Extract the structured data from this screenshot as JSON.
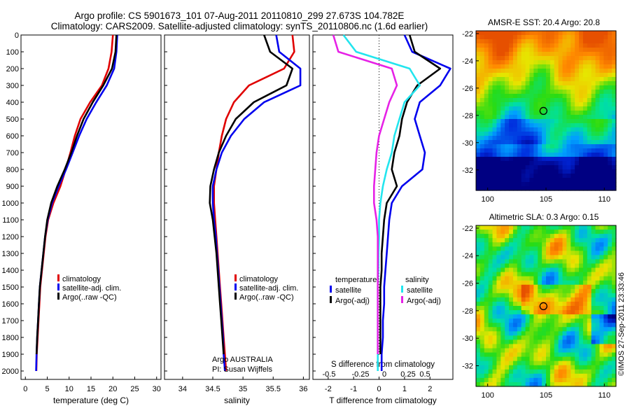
{
  "header": {
    "line1": "Argo profile: CS 5901673_101 07-Aug-2011 20110810_299 27.673S 104.782E",
    "line2": "Climatology: CARS2009. Satellite-adjusted climatology: synTS_20110806.nc (1.6d earlier)"
  },
  "footer": {
    "stamp": "©IMOS 27-Sep-2011 23:33:46"
  },
  "colors": {
    "climatology": "#e00000",
    "satellite": "#0000ee",
    "argo": "#000000",
    "sat_salinity": "#22e5ee",
    "argo_salinity": "#e622e6"
  },
  "chart_data": [
    {
      "type": "line",
      "xlabel": "temperature (deg C)",
      "xlim": [
        -1,
        31
      ],
      "xticks": [
        0,
        5,
        10,
        15,
        20,
        25,
        30
      ],
      "ylim": [
        0,
        2050
      ],
      "yticks": [
        0,
        100,
        200,
        300,
        400,
        500,
        600,
        700,
        800,
        900,
        1000,
        1100,
        1200,
        1300,
        1400,
        1500,
        1600,
        1700,
        1800,
        1900,
        2000
      ],
      "legend": [
        "climatology",
        "satellite-adj. clim.",
        "Argo(..raw -QC)"
      ],
      "legend_colors": [
        "#e00000",
        "#0000ee",
        "#000000"
      ],
      "series": [
        {
          "name": "climatology",
          "color": "#e00000",
          "x": [
            20.0,
            19.7,
            19.0,
            17.5,
            14.8,
            12.6,
            11.3,
            10.3,
            9.2,
            8.0,
            6.4,
            5.2,
            4.6,
            4.2,
            3.8,
            3.4,
            3.2,
            3.0,
            2.8,
            2.6,
            2.5
          ],
          "y": [
            0,
            100,
            200,
            300,
            400,
            500,
            600,
            700,
            800,
            900,
            1000,
            1100,
            1200,
            1300,
            1400,
            1500,
            1600,
            1700,
            1800,
            1900,
            2000
          ]
        },
        {
          "name": "satellite-adj. clim.",
          "color": "#0000ee",
          "x": [
            21.0,
            20.8,
            20.3,
            18.6,
            16.2,
            14.0,
            12.3,
            10.8,
            9.3,
            7.6,
            6.1,
            5.1,
            4.5,
            4.1,
            3.7,
            3.3,
            3.1,
            2.9,
            2.7,
            2.55,
            2.45
          ],
          "y": [
            0,
            100,
            200,
            300,
            400,
            500,
            600,
            700,
            800,
            900,
            1000,
            1100,
            1200,
            1300,
            1400,
            1500,
            1600,
            1700,
            1800,
            1900,
            2000
          ]
        },
        {
          "name": "Argo(..raw -QC)",
          "color": "#000000",
          "x": [
            20.8,
            20.6,
            19.8,
            17.8,
            15.4,
            13.3,
            11.8,
            10.5,
            9.0,
            7.3,
            5.9,
            5.0,
            4.5,
            4.1,
            3.7,
            3.3,
            3.1,
            2.9,
            2.7,
            2.55
          ],
          "y": [
            0,
            100,
            200,
            300,
            400,
            500,
            600,
            700,
            800,
            900,
            1000,
            1100,
            1200,
            1300,
            1400,
            1500,
            1600,
            1700,
            1800,
            1900
          ]
        }
      ]
    },
    {
      "type": "line",
      "xlabel": "salinity",
      "xlim": [
        33.7,
        36.1
      ],
      "xticks": [
        34,
        34.5,
        35,
        35.5,
        36
      ],
      "ylim": [
        0,
        2050
      ],
      "legend": [
        "climatology",
        "satellite-adj. clim.",
        "Argo(..raw -QC)"
      ],
      "legend_colors": [
        "#e00000",
        "#0000ee",
        "#000000"
      ],
      "annotations": [
        "Argo AUSTRALIA",
        "PI: Susan Wijffels"
      ],
      "series": [
        {
          "name": "climatology",
          "color": "#e00000",
          "x": [
            35.82,
            35.85,
            35.68,
            35.1,
            34.85,
            34.72,
            34.65,
            34.6,
            34.56,
            34.52,
            34.52,
            34.54,
            34.56,
            34.58,
            34.6,
            34.62,
            34.64,
            34.66,
            34.68,
            34.7,
            34.72
          ],
          "y": [
            0,
            100,
            200,
            300,
            400,
            500,
            600,
            700,
            800,
            900,
            1000,
            1100,
            1200,
            1300,
            1400,
            1500,
            1600,
            1700,
            1800,
            1900,
            2000
          ]
        },
        {
          "name": "satellite-adj. clim.",
          "color": "#0000ee",
          "x": [
            35.55,
            35.6,
            35.95,
            35.95,
            35.35,
            35.02,
            34.8,
            34.65,
            34.56,
            34.5,
            34.5,
            34.52,
            34.55,
            34.57,
            34.59,
            34.61,
            34.63,
            34.65,
            34.67,
            34.68,
            34.7
          ],
          "y": [
            0,
            100,
            200,
            300,
            400,
            500,
            600,
            700,
            800,
            900,
            1000,
            1100,
            1200,
            1300,
            1400,
            1500,
            1600,
            1700,
            1800,
            1900,
            2000
          ]
        },
        {
          "name": "Argo(..raw -QC)",
          "color": "#000000",
          "x": [
            35.35,
            35.45,
            35.82,
            35.72,
            35.18,
            34.88,
            34.72,
            34.6,
            34.52,
            34.46,
            34.45,
            34.5,
            34.53,
            34.56,
            34.58,
            34.6,
            34.62,
            34.64,
            34.66,
            34.68
          ],
          "y": [
            0,
            100,
            200,
            300,
            400,
            500,
            600,
            700,
            800,
            900,
            1000,
            1100,
            1200,
            1300,
            1400,
            1500,
            1600,
            1700,
            1800,
            1900
          ]
        }
      ]
    },
    {
      "type": "line",
      "xlabel": "T difference from climatology",
      "xlabel_top": "S difference from climatology",
      "xlim": [
        -2.6,
        2.9
      ],
      "xticks": [
        -2,
        -1,
        0,
        1,
        2
      ],
      "xticks_top": [
        -0.5,
        -0.25,
        0,
        0.25,
        0.5
      ],
      "ylim": [
        0,
        2050
      ],
      "legend_headers": [
        "temperature",
        "salinity"
      ],
      "legend": [
        "satellite",
        "Argo(-adj)",
        "satellite",
        "Argo(-adj)"
      ],
      "legend_colors": [
        "#0000ee",
        "#000000",
        "#22e5ee",
        "#e622e6"
      ],
      "series": [
        {
          "name": "temperature satellite",
          "color": "#0000ee",
          "x": [
            1.0,
            1.3,
            2.8,
            2.4,
            1.6,
            1.4,
            1.6,
            1.8,
            1.7,
            0.9,
            0.5,
            0.4,
            0.35,
            0.3,
            0.25,
            0.2,
            0.2,
            0.15,
            0.15,
            0.1,
            0.1
          ],
          "y": [
            0,
            100,
            200,
            300,
            400,
            500,
            600,
            700,
            800,
            900,
            1000,
            1100,
            1200,
            1300,
            1400,
            1500,
            1600,
            1700,
            1800,
            1900,
            2000
          ]
        },
        {
          "name": "temperature Argo(-adj)",
          "color": "#000000",
          "x": [
            1.2,
            1.4,
            2.4,
            1.5,
            1.1,
            0.9,
            0.8,
            0.6,
            0.5,
            0.7,
            0.3,
            0.2,
            0.15,
            0.1,
            0.1,
            0.05,
            0.05,
            0.05,
            0.05,
            0.05
          ],
          "y": [
            0,
            100,
            200,
            300,
            400,
            500,
            600,
            700,
            800,
            900,
            1000,
            1100,
            1200,
            1300,
            1400,
            1500,
            1600,
            1700,
            1800,
            1900
          ]
        },
        {
          "name": "salinity satellite",
          "color": "#22e5ee",
          "x": [
            -1.4,
            -0.9,
            1.2,
            1.6,
            1.0,
            0.8,
            0.6,
            0.5,
            0.3,
            0.15,
            0.05,
            0.0,
            0.0,
            -0.02,
            -0.03,
            -0.05,
            -0.05,
            -0.05,
            -0.05,
            -0.05,
            -0.05
          ],
          "y": [
            0,
            100,
            200,
            300,
            400,
            500,
            600,
            700,
            800,
            900,
            1000,
            1100,
            1200,
            1300,
            1400,
            1500,
            1600,
            1700,
            1800,
            1900,
            2000
          ]
        },
        {
          "name": "salinity Argo(-adj)",
          "color": "#e622e6",
          "x": [
            -1.8,
            -1.6,
            0.5,
            0.7,
            0.4,
            0.2,
            0.0,
            -0.1,
            -0.15,
            -0.2,
            -0.2,
            -0.1,
            -0.05,
            -0.05,
            -0.05,
            -0.05,
            -0.05,
            -0.05,
            -0.05,
            -0.05
          ],
          "y": [
            0,
            100,
            200,
            300,
            400,
            500,
            600,
            700,
            800,
            900,
            1000,
            1100,
            1200,
            1300,
            1400,
            1500,
            1600,
            1700,
            1800,
            1900
          ]
        }
      ]
    },
    {
      "type": "heatmap",
      "title": "AMSR-E SST: 20.4 Argo: 20.8",
      "xlim": [
        99,
        111
      ],
      "ylim": [
        -33.5,
        -21.8
      ],
      "xticks": [
        100,
        105,
        110
      ],
      "yticks": [
        -22,
        -24,
        -26,
        -28,
        -30,
        -32
      ],
      "marker": {
        "lon": 104.782,
        "lat": -27.673
      },
      "field": "sst"
    },
    {
      "type": "heatmap",
      "title": "Altimetric SLA: 0.3 Argo: 0.15",
      "xlim": [
        99,
        111
      ],
      "ylim": [
        -33.5,
        -21.8
      ],
      "xticks": [
        100,
        105,
        110
      ],
      "yticks": [
        -22,
        -24,
        -26,
        -28,
        -30,
        -32
      ],
      "marker": {
        "lon": 104.782,
        "lat": -27.673
      },
      "field": "sla"
    }
  ]
}
